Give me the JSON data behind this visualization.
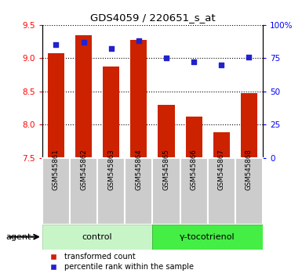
{
  "title": "GDS4059 / 220651_s_at",
  "samples": [
    "GSM545861",
    "GSM545862",
    "GSM545863",
    "GSM545864",
    "GSM545865",
    "GSM545866",
    "GSM545867",
    "GSM545868"
  ],
  "bar_values": [
    9.08,
    9.35,
    8.87,
    9.28,
    8.3,
    8.12,
    7.88,
    8.47
  ],
  "scatter_percentile": [
    85,
    87,
    82,
    88,
    75,
    72,
    70,
    76
  ],
  "ylim_left": [
    7.5,
    9.5
  ],
  "ylim_right": [
    0,
    100
  ],
  "bar_color": "#cc2200",
  "scatter_color": "#2222cc",
  "yticks_left": [
    7.5,
    8.0,
    8.5,
    9.0,
    9.5
  ],
  "yticks_right": [
    0,
    25,
    50,
    75,
    100
  ],
  "ytick_labels_right": [
    "0",
    "25",
    "50",
    "75",
    "100%"
  ],
  "group1_label": "control",
  "group2_label": "γ-tocotrienol",
  "group1_indices": [
    0,
    1,
    2,
    3
  ],
  "group2_indices": [
    4,
    5,
    6,
    7
  ],
  "group1_color": "#c8f5c8",
  "group2_color": "#44ee44",
  "xlabel_box_color": "#cccccc",
  "agent_label": "agent",
  "legend_bar_label": "transformed count",
  "legend_scatter_label": "percentile rank within the sample",
  "bar_bottom": 7.5,
  "bar_width": 0.6
}
